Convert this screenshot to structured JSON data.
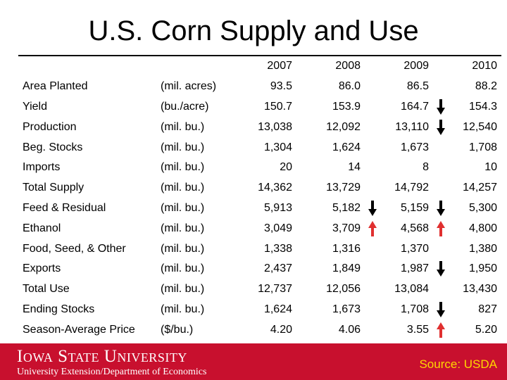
{
  "title": "U.S. Corn Supply and Use",
  "years": [
    "2007",
    "2008",
    "2009",
    "2010"
  ],
  "rows": [
    {
      "label": "Area Planted",
      "unit": "(mil. acres)",
      "values": [
        "93.5",
        "86.0",
        "86.5",
        "88.2"
      ],
      "arrow_2009": "",
      "arrow_2010": ""
    },
    {
      "label": "Yield",
      "unit": "(bu./acre)",
      "values": [
        "150.7",
        "153.9",
        "164.7",
        "154.3"
      ],
      "arrow_2009": "",
      "arrow_2010": "down"
    },
    {
      "label": "Production",
      "unit": "(mil. bu.)",
      "values": [
        "13,038",
        "12,092",
        "13,110",
        "12,540"
      ],
      "arrow_2009": "",
      "arrow_2010": "down"
    },
    {
      "label": "Beg. Stocks",
      "unit": "(mil. bu.)",
      "values": [
        "1,304",
        "1,624",
        "1,673",
        "1,708"
      ],
      "arrow_2009": "",
      "arrow_2010": ""
    },
    {
      "label": "Imports",
      "unit": "(mil. bu.)",
      "values": [
        "20",
        "14",
        "8",
        "10"
      ],
      "arrow_2009": "",
      "arrow_2010": ""
    },
    {
      "label": "Total Supply",
      "unit": "(mil. bu.)",
      "values": [
        "14,362",
        "13,729",
        "14,792",
        "14,257"
      ],
      "arrow_2009": "",
      "arrow_2010": ""
    },
    {
      "label": "Feed & Residual",
      "unit": "(mil. bu.)",
      "values": [
        "5,913",
        "5,182",
        "5,159",
        "5,300"
      ],
      "arrow_2009": "down",
      "arrow_2010": "down"
    },
    {
      "label": "Ethanol",
      "unit": "(mil. bu.)",
      "values": [
        "3,049",
        "3,709",
        "4,568",
        "4,800"
      ],
      "arrow_2009": "up",
      "arrow_2010": "up"
    },
    {
      "label": "Food, Seed, & Other",
      "unit": "(mil. bu.)",
      "values": [
        "1,338",
        "1,316",
        "1,370",
        "1,380"
      ],
      "arrow_2009": "",
      "arrow_2010": ""
    },
    {
      "label": "Exports",
      "unit": "(mil. bu.)",
      "values": [
        "2,437",
        "1,849",
        "1,987",
        "1,950"
      ],
      "arrow_2009": "",
      "arrow_2010": "down"
    },
    {
      "label": "Total Use",
      "unit": "(mil. bu.)",
      "values": [
        "12,737",
        "12,056",
        "13,084",
        "13,430"
      ],
      "arrow_2009": "",
      "arrow_2010": ""
    },
    {
      "label": "Ending Stocks",
      "unit": "(mil. bu.)",
      "values": [
        "1,624",
        "1,673",
        "1,708",
        "827"
      ],
      "arrow_2009": "",
      "arrow_2010": "down"
    },
    {
      "label": "Season-Average Price",
      "unit": "($/bu.)",
      "values": [
        "4.20",
        "4.06",
        "3.55",
        "5.20"
      ],
      "arrow_2009": "",
      "arrow_2010": "up"
    }
  ],
  "arrow_colors": {
    "down": "#000000",
    "up": "#e03030"
  },
  "footer": {
    "brand": "Iowa State University",
    "subtitle": "University Extension/Department of Economics",
    "source": "Source: USDA",
    "bar_color": "#c8102e",
    "source_color": "#ffd700"
  }
}
